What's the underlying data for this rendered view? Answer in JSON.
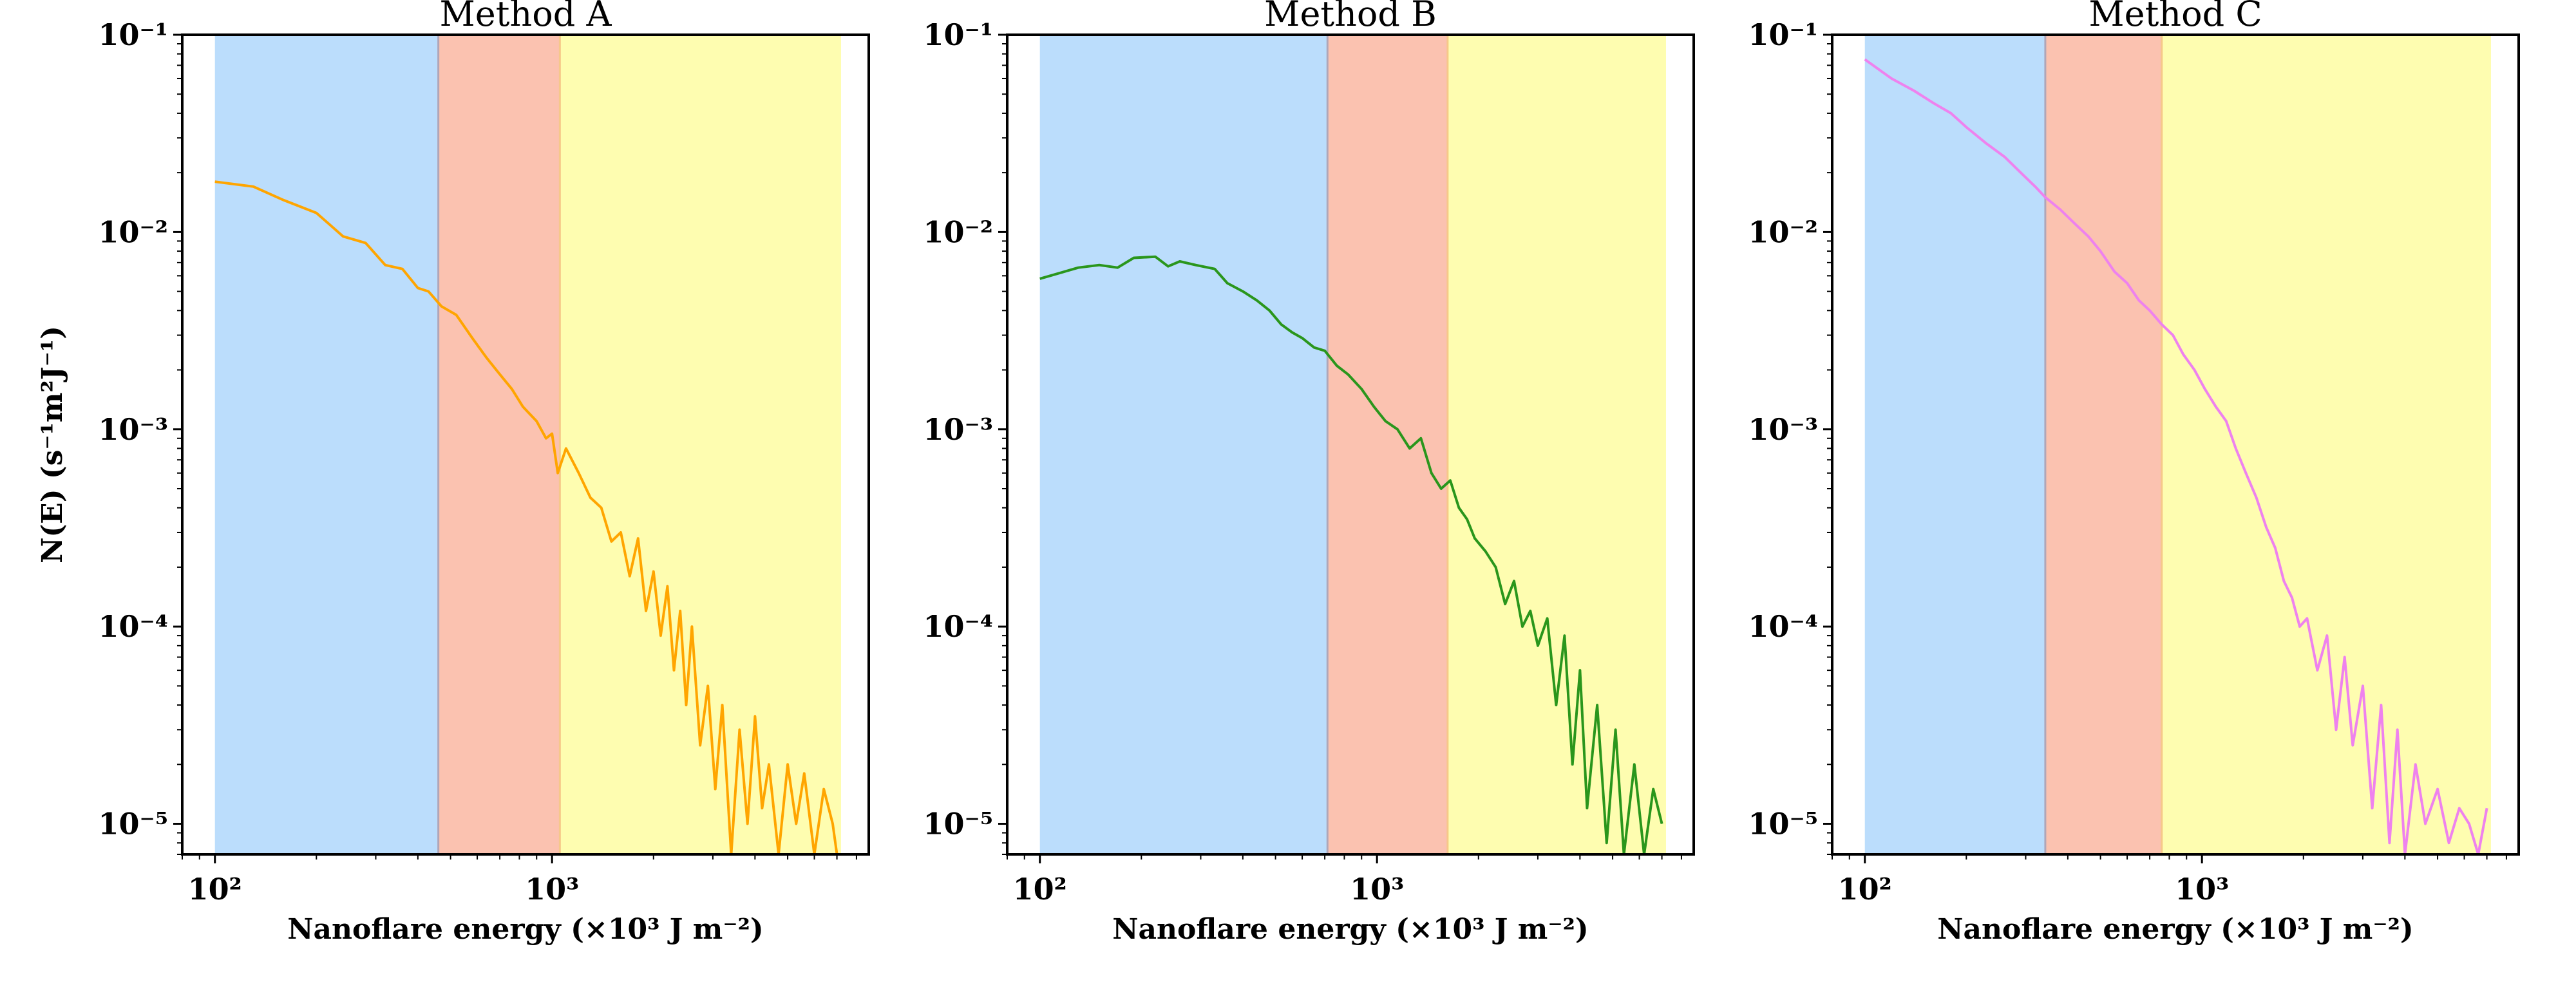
{
  "chart_data": [
    {
      "type": "line",
      "title": "Method A",
      "xlabel": "Nanoflare energy (×10³ J m⁻²)",
      "ylabel": "N(E) (s⁻¹m²J⁻¹)",
      "xscale": "log",
      "yscale": "log",
      "xlim": [
        80,
        8700
      ],
      "ylim": [
        7e-06,
        0.1
      ],
      "xticks": [
        {
          "value": 100,
          "label": "10²"
        },
        {
          "value": 1000,
          "label": "10³"
        }
      ],
      "yticks": [
        {
          "value": 0.1,
          "label": "10⁻¹"
        },
        {
          "value": 0.01,
          "label": "10⁻²"
        },
        {
          "value": 0.001,
          "label": "10⁻³"
        },
        {
          "value": 0.0001,
          "label": "10⁻⁴"
        },
        {
          "value": 1e-05,
          "label": "10⁻⁵"
        }
      ],
      "spans": [
        {
          "from": 100,
          "to": 460,
          "color": "#bbddfc"
        },
        {
          "from": 460,
          "to": 1055,
          "color": "#fbc2b0"
        },
        {
          "from": 1055,
          "to": 7200,
          "color": "#fefdb0"
        }
      ],
      "line_color": "#ffa500",
      "series": {
        "x": [
          100,
          130,
          160,
          200,
          240,
          280,
          320,
          360,
          400,
          430,
          470,
          520,
          580,
          640,
          700,
          760,
          820,
          900,
          960,
          1000,
          1040,
          1100,
          1200,
          1300,
          1400,
          1500,
          1600,
          1700,
          1800,
          1900,
          2000,
          2100,
          2200,
          2300,
          2400,
          2500,
          2600,
          2750,
          2900,
          3050,
          3200,
          3400,
          3600,
          3800,
          4000,
          4200,
          4400,
          4700,
          5000,
          5300,
          5600,
          6000,
          6400,
          6800,
          7000
        ],
        "y": [
          0.018,
          0.017,
          0.0145,
          0.0125,
          0.0095,
          0.0088,
          0.0068,
          0.0065,
          0.0052,
          0.005,
          0.0042,
          0.0038,
          0.0029,
          0.0023,
          0.0019,
          0.0016,
          0.0013,
          0.0011,
          0.0009,
          0.00095,
          0.0006,
          0.0008,
          0.0006,
          0.00045,
          0.0004,
          0.00027,
          0.0003,
          0.00018,
          0.00028,
          0.00012,
          0.00019,
          9e-05,
          0.00016,
          6e-05,
          0.00012,
          4e-05,
          0.0001,
          2.5e-05,
          5e-05,
          1.5e-05,
          4e-05,
          7e-06,
          3e-05,
          1e-05,
          3.5e-05,
          1.2e-05,
          2e-05,
          7e-06,
          2e-05,
          1e-05,
          1.8e-05,
          7e-06,
          1.5e-05,
          1e-05,
          7e-06
        ]
      }
    },
    {
      "type": "line",
      "title": "Method B",
      "xlabel": "Nanoflare energy (×10³ J m⁻²)",
      "xscale": "log",
      "yscale": "log",
      "xlim": [
        80,
        8700
      ],
      "ylim": [
        7e-06,
        0.1
      ],
      "xticks": [
        {
          "value": 100,
          "label": "10²"
        },
        {
          "value": 1000,
          "label": "10³"
        }
      ],
      "yticks": [
        {
          "value": 0.1,
          "label": "10⁻¹"
        },
        {
          "value": 0.01,
          "label": "10⁻²"
        },
        {
          "value": 0.001,
          "label": "10⁻³"
        },
        {
          "value": 0.0001,
          "label": "10⁻⁴"
        },
        {
          "value": 1e-05,
          "label": "10⁻⁵"
        }
      ],
      "spans": [
        {
          "from": 100,
          "to": 713,
          "color": "#bbddfc"
        },
        {
          "from": 713,
          "to": 1620,
          "color": "#fbc2b0"
        },
        {
          "from": 1620,
          "to": 7200,
          "color": "#fefdb0"
        }
      ],
      "line_color": "#2a961c",
      "series": {
        "x": [
          100,
          130,
          150,
          170,
          190,
          220,
          240,
          260,
          290,
          330,
          360,
          400,
          440,
          480,
          520,
          560,
          600,
          650,
          700,
          760,
          820,
          900,
          980,
          1060,
          1150,
          1250,
          1350,
          1450,
          1550,
          1650,
          1750,
          1850,
          1950,
          2100,
          2250,
          2400,
          2550,
          2700,
          2850,
          3000,
          3200,
          3400,
          3600,
          3800,
          4000,
          4200,
          4500,
          4800,
          5100,
          5400,
          5800,
          6200,
          6600,
          7000
        ],
        "y": [
          0.0058,
          0.0066,
          0.0068,
          0.0066,
          0.0074,
          0.0075,
          0.0067,
          0.0071,
          0.0068,
          0.0065,
          0.0055,
          0.005,
          0.0045,
          0.004,
          0.0034,
          0.0031,
          0.0029,
          0.0026,
          0.0025,
          0.0021,
          0.0019,
          0.0016,
          0.0013,
          0.0011,
          0.001,
          0.0008,
          0.0009,
          0.0006,
          0.0005,
          0.00055,
          0.0004,
          0.00035,
          0.00028,
          0.00024,
          0.0002,
          0.00013,
          0.00017,
          0.0001,
          0.00012,
          8e-05,
          0.00011,
          4e-05,
          9e-05,
          2e-05,
          6e-05,
          1.2e-05,
          4e-05,
          8e-06,
          3e-05,
          7e-06,
          2e-05,
          7e-06,
          1.5e-05,
          1e-05
        ]
      }
    },
    {
      "type": "line",
      "title": "Method C",
      "xlabel": "Nanoflare energy (×10³ J m⁻²)",
      "xscale": "log",
      "yscale": "log",
      "xlim": [
        80,
        8700
      ],
      "ylim": [
        7e-06,
        0.1
      ],
      "xticks": [
        {
          "value": 100,
          "label": "10²"
        },
        {
          "value": 1000,
          "label": "10³"
        }
      ],
      "yticks": [
        {
          "value": 0.1,
          "label": "10⁻¹"
        },
        {
          "value": 0.01,
          "label": "10⁻²"
        },
        {
          "value": 0.001,
          "label": "10⁻³"
        },
        {
          "value": 0.0001,
          "label": "10⁻⁴"
        },
        {
          "value": 1e-05,
          "label": "10⁻⁵"
        }
      ],
      "spans": [
        {
          "from": 100,
          "to": 343,
          "color": "#bbddfc"
        },
        {
          "from": 343,
          "to": 760,
          "color": "#fbc2b0"
        },
        {
          "from": 760,
          "to": 7200,
          "color": "#fefdb0"
        }
      ],
      "line_color": "#ee82ee",
      "series": {
        "x": [
          100,
          120,
          140,
          160,
          180,
          200,
          230,
          260,
          290,
          320,
          343,
          380,
          420,
          460,
          500,
          550,
          600,
          650,
          700,
          760,
          820,
          880,
          950,
          1020,
          1100,
          1180,
          1260,
          1350,
          1450,
          1550,
          1650,
          1750,
          1850,
          1950,
          2050,
          2200,
          2350,
          2500,
          2650,
          2800,
          3000,
          3200,
          3400,
          3600,
          3800,
          4000,
          4300,
          4600,
          5000,
          5400,
          5800,
          6200,
          6600,
          7000
        ],
        "y": [
          0.075,
          0.06,
          0.052,
          0.045,
          0.04,
          0.034,
          0.028,
          0.024,
          0.02,
          0.017,
          0.015,
          0.013,
          0.011,
          0.0095,
          0.008,
          0.0063,
          0.0055,
          0.0045,
          0.004,
          0.0034,
          0.003,
          0.0024,
          0.002,
          0.0016,
          0.0013,
          0.0011,
          0.0008,
          0.0006,
          0.00045,
          0.00032,
          0.00025,
          0.00017,
          0.00014,
          0.0001,
          0.00011,
          6e-05,
          9e-05,
          3e-05,
          7e-05,
          2.5e-05,
          5e-05,
          1.2e-05,
          4e-05,
          8e-06,
          3e-05,
          7e-06,
          2e-05,
          1e-05,
          1.5e-05,
          8e-06,
          1.2e-05,
          1e-05,
          7e-06,
          1.2e-05
        ]
      }
    }
  ]
}
